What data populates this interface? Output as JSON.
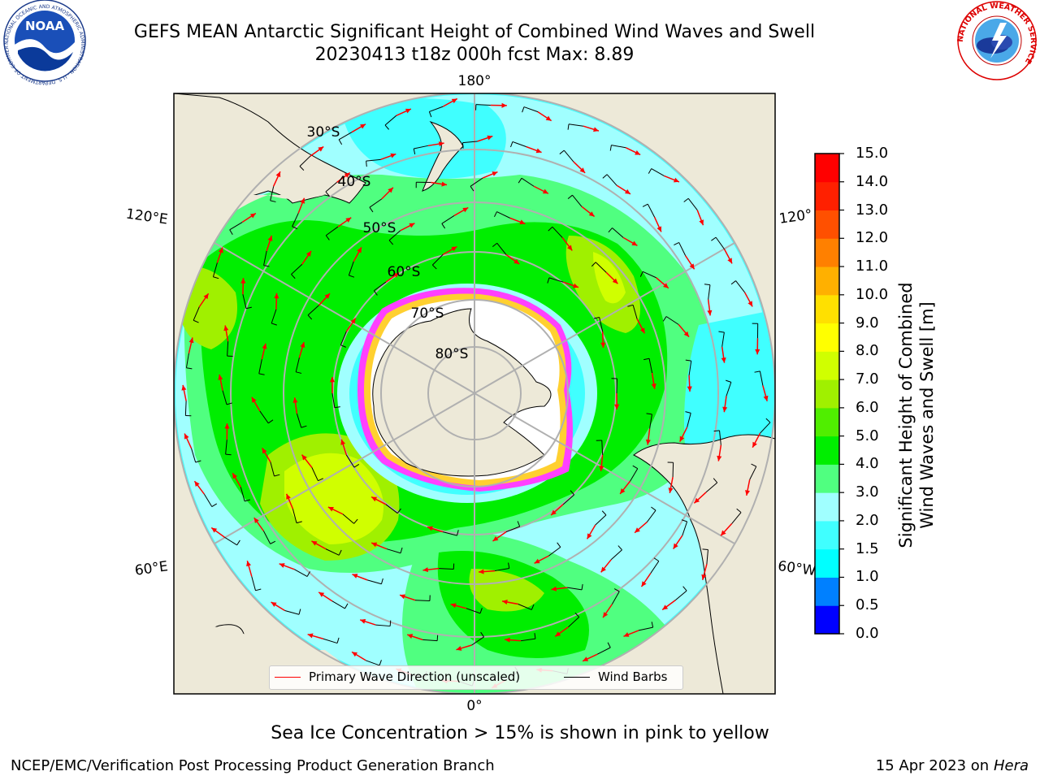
{
  "header": {
    "title_line1": "GEFS MEAN Antarctic Significant Height of Combined Wind Waves and Swell",
    "title_line2": "20230413 t18z 000h fcst   Max: 8.89"
  },
  "logos": {
    "left": {
      "text": "NOAA",
      "ring_text": "NATIONAL OCEANIC AND ATMOSPHERIC ADMINISTRATION · U.S. DEPARTMENT OF COMMERCE"
    },
    "right": {
      "ring_text": "NATIONAL WEATHER SERVICE"
    }
  },
  "map": {
    "longitude_labels": [
      "180°",
      "120°E",
      "120°",
      "60°E",
      "60°W",
      "0°"
    ],
    "latitude_labels": [
      "30°S",
      "40°S",
      "50°S",
      "60°S",
      "70°S",
      "80°S"
    ],
    "legend": {
      "wave_label": "Primary Wave Direction (unscaled)",
      "barb_label": "Wind Barbs"
    }
  },
  "colorbar": {
    "title_line1": "Significant Height of Combined",
    "title_line2": "Wind Waves and Swell [m]",
    "ticks": [
      "0.0",
      "0.5",
      "1.0",
      "1.5",
      "2.0",
      "3.0",
      "4.0",
      "5.0",
      "6.0",
      "7.0",
      "8.0",
      "9.0",
      "10.0",
      "11.0",
      "12.0",
      "13.0",
      "14.0",
      "15.0"
    ],
    "colors": [
      "#0000ff",
      "#0080ff",
      "#00ffff",
      "#40ffff",
      "#a0ffff",
      "#50ff80",
      "#00ee00",
      "#50ee00",
      "#a0f000",
      "#d0ff00",
      "#ffff00",
      "#ffe000",
      "#ffb000",
      "#ff8000",
      "#ff5000",
      "#ff2000",
      "#ff0000"
    ]
  },
  "footer": {
    "note": "Sea Ice Concentration > 15% is shown in pink to yellow",
    "credit": "NCEP/EMC/Verification Post Processing Product Generation Branch",
    "date": "15 Apr 2023 on ",
    "host": "Hera"
  },
  "colors": {
    "land": "#ede9d8",
    "ice_edge": "#ff40ff",
    "ocean_low": "#a0ffff",
    "ocean_mid": "#40ffff",
    "wave_arrow": "#ff0000",
    "barb": "#000000"
  }
}
